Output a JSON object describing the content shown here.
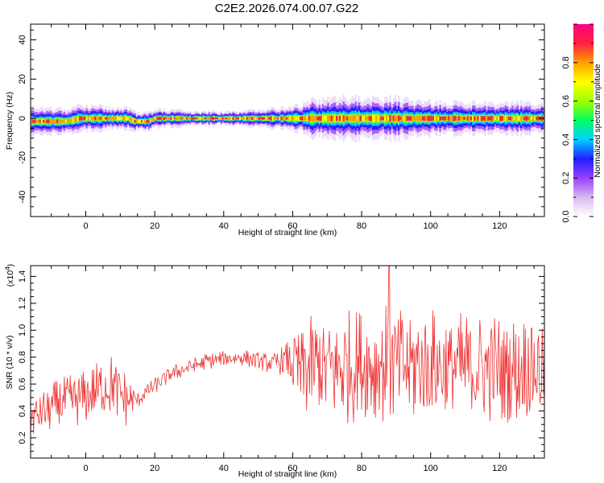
{
  "figure": {
    "title": "C2E2.2026.074.00.07.G22"
  },
  "chart_data": [
    {
      "type": "heatmap",
      "xlabel": "Height of straight line (km)",
      "ylabel": "Frequency (Hz)",
      "xlim": [
        -16,
        133
      ],
      "ylim": [
        -50,
        48
      ],
      "xticks": [
        0,
        20,
        40,
        60,
        80,
        100,
        120
      ],
      "yticks": [
        -40,
        -20,
        0,
        20,
        40
      ],
      "colorbar": {
        "label": "Normalized spectral amplitude",
        "range": [
          0,
          1
        ],
        "ticks": [
          "0.0",
          "0.2",
          "0.4",
          "0.6",
          "0.8"
        ],
        "colormap": [
          "#ffffff",
          "#d8b8f0",
          "#9a40ff",
          "#2020ff",
          "#00d0ff",
          "#00ff60",
          "#a0ff00",
          "#ffff00",
          "#ffa000",
          "#ff2040",
          "#ff0080"
        ]
      },
      "band": {
        "center_hz": [
          {
            "x": -16,
            "f": -1.5
          },
          {
            "x": -6,
            "f": -1.5
          },
          {
            "x": -4,
            "f": -1
          },
          {
            "x": -2,
            "f": 0
          },
          {
            "x": 12,
            "f": 0
          },
          {
            "x": 14,
            "f": -1.5
          },
          {
            "x": 18,
            "f": -1.5
          },
          {
            "x": 20,
            "f": 0
          },
          {
            "x": 133,
            "f": 0
          }
        ],
        "halfwidth_hz": [
          {
            "x": -16,
            "w": 3.5
          },
          {
            "x": 0,
            "w": 3
          },
          {
            "x": 20,
            "w": 2
          },
          {
            "x": 40,
            "w": 1.5
          },
          {
            "x": 58,
            "w": 2.5
          },
          {
            "x": 66,
            "w": 4.5
          },
          {
            "x": 85,
            "w": 5
          },
          {
            "x": 100,
            "w": 4
          },
          {
            "x": 133,
            "w": 3.5
          }
        ]
      }
    },
    {
      "type": "line",
      "xlabel": "Height of straight line (km)",
      "ylabel": "SNR (10 * v/v)",
      "y_exponent_label": "(x10",
      "y_exponent_power": "4",
      "y_exponent_close": ")",
      "xlim": [
        -16,
        133
      ],
      "ylim": [
        0.05,
        1.48
      ],
      "xticks": [
        0,
        20,
        40,
        60,
        80,
        100,
        120
      ],
      "yticks": [
        "0.2",
        "0.4",
        "0.6",
        "0.8",
        "1.0",
        "1.2",
        "1.4"
      ],
      "line_color": "#ee3333",
      "envelope": [
        {
          "x": -16,
          "mean": 0.35,
          "spread": 0.12
        },
        {
          "x": -8,
          "mean": 0.45,
          "spread": 0.16
        },
        {
          "x": 0,
          "mean": 0.5,
          "spread": 0.17
        },
        {
          "x": 7,
          "mean": 0.6,
          "spread": 0.2
        },
        {
          "x": 12,
          "mean": 0.48,
          "spread": 0.17
        },
        {
          "x": 15,
          "mean": 0.48,
          "spread": 0.05
        },
        {
          "x": 18,
          "mean": 0.55,
          "spread": 0.05
        },
        {
          "x": 25,
          "mean": 0.68,
          "spread": 0.05
        },
        {
          "x": 35,
          "mean": 0.77,
          "spread": 0.05
        },
        {
          "x": 45,
          "mean": 0.8,
          "spread": 0.05
        },
        {
          "x": 54,
          "mean": 0.75,
          "spread": 0.06
        },
        {
          "x": 58,
          "mean": 0.78,
          "spread": 0.1
        },
        {
          "x": 62,
          "mean": 0.72,
          "spread": 0.3
        },
        {
          "x": 70,
          "mean": 0.72,
          "spread": 0.35
        },
        {
          "x": 88,
          "mean": 0.75,
          "spread": 0.38
        },
        {
          "x": 110,
          "mean": 0.72,
          "spread": 0.35
        },
        {
          "x": 133,
          "mean": 0.72,
          "spread": 0.33
        }
      ],
      "peak": {
        "x": 88,
        "y": 1.48
      }
    }
  ]
}
